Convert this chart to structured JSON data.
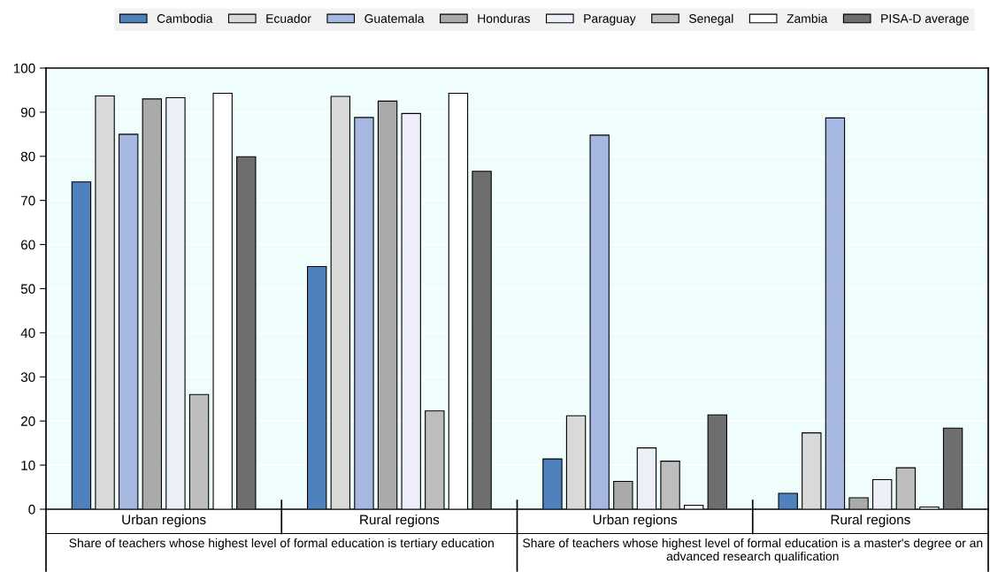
{
  "chart_data": {
    "type": "bar",
    "categories": [
      "Urban regions",
      "Rural regions",
      "Urban regions",
      "Rural regions"
    ],
    "series": [
      {
        "name": "Cambodia",
        "color": "#4f81bd",
        "values": [
          74.2,
          55.0,
          11.4,
          3.6
        ]
      },
      {
        "name": "Ecuador",
        "color": "#d9d9d9",
        "values": [
          93.7,
          93.6,
          21.2,
          17.3
        ]
      },
      {
        "name": "Guatemala",
        "color": "#a6b8e2",
        "values": [
          85.0,
          88.8,
          84.8,
          88.7
        ]
      },
      {
        "name": "Honduras",
        "color": "#aaaaaa",
        "values": [
          93.0,
          92.5,
          6.3,
          2.6
        ]
      },
      {
        "name": "Paraguay",
        "color": "#eceff8",
        "values": [
          93.3,
          89.7,
          13.9,
          6.7
        ]
      },
      {
        "name": "Senegal",
        "color": "#bdbdbd",
        "values": [
          26.0,
          22.3,
          10.9,
          9.4
        ]
      },
      {
        "name": "Zambia",
        "color": "#ffffff",
        "values": [
          94.3,
          94.3,
          0.9,
          0.5
        ]
      },
      {
        "name": "PISA-D average",
        "color": "#6e6e6e",
        "values": [
          79.9,
          76.6,
          21.4,
          18.4
        ]
      }
    ],
    "annotations": [
      "Share of teachers whose highest level of formal education is tertiary education",
      "Share of teachers whose highest level of formal education is a master's degree or an advanced research qualification"
    ],
    "ylim": [
      0,
      100
    ],
    "yticks": [
      0,
      10,
      20,
      30,
      40,
      50,
      60,
      70,
      80,
      90,
      100
    ],
    "grid": "y",
    "legend": "top"
  }
}
